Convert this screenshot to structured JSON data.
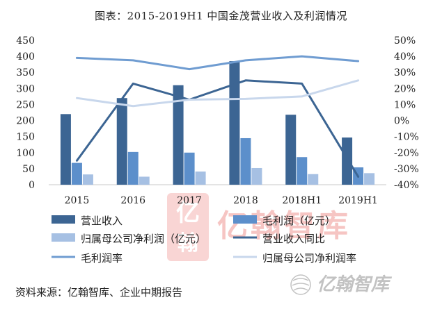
{
  "title": "图表：2015-2019H1 中国金茂营业收入及利润情况",
  "source": "资料来源：亿翰智库、企业中期报告",
  "watermarks": {
    "center_logo_text": "亿翰智库",
    "corner_logo_text": "亿翰智库"
  },
  "colors": {
    "revenue": "#3c6593",
    "gross_profit": "#5c8fcb",
    "net_profit_parent": "#a6c0e3",
    "revenue_yoy": "#3c6593",
    "gross_margin": "#6f9cd1",
    "net_margin": "#c8d7ec",
    "watermark": "#f2a5a2",
    "axis": "#c9c9c9"
  },
  "chart_data": {
    "type": "bar",
    "categories": [
      "2015",
      "2016",
      "2017",
      "2018",
      "2018H1",
      "2019H1"
    ],
    "left_axis": {
      "ticks": [
        "0",
        "50",
        "100",
        "150",
        "200",
        "250",
        "300",
        "350",
        "400",
        "450"
      ],
      "ylim": [
        0,
        450
      ]
    },
    "right_axis": {
      "ticks": [
        "-40%",
        "-30%",
        "-20%",
        "-10%",
        "0%",
        "10%",
        "20%",
        "30%",
        "40%",
        "50%"
      ],
      "ylim": [
        -40,
        50
      ]
    },
    "series": [
      {
        "name": "营业收入",
        "kind": "bar",
        "axis": "left",
        "color_key": "revenue",
        "values": [
          220,
          270,
          310,
          385,
          218,
          147
        ]
      },
      {
        "name": "毛利润（亿元）",
        "kind": "bar",
        "axis": "left",
        "color_key": "gross_profit",
        "values": [
          68,
          102,
          100,
          145,
          86,
          54
        ]
      },
      {
        "name": "归属母公司净利润（亿元）",
        "kind": "bar",
        "axis": "left",
        "color_key": "net_profit_parent",
        "values": [
          32,
          25,
          41,
          52,
          33,
          36
        ]
      },
      {
        "name": "营业收入同比",
        "kind": "line",
        "axis": "right",
        "color_key": "revenue_yoy",
        "values": [
          -25,
          23,
          13,
          25,
          23,
          -35
        ]
      },
      {
        "name": "毛利润率",
        "kind": "line",
        "axis": "right",
        "color_key": "gross_margin",
        "values": [
          39,
          37.5,
          32,
          37.5,
          40,
          37
        ]
      },
      {
        "name": "归属母公司净利润率",
        "kind": "line",
        "axis": "right",
        "color_key": "net_margin",
        "values": [
          14,
          9,
          13,
          13.5,
          15,
          25
        ]
      }
    ],
    "legend_position": "bottom",
    "grid": false
  }
}
